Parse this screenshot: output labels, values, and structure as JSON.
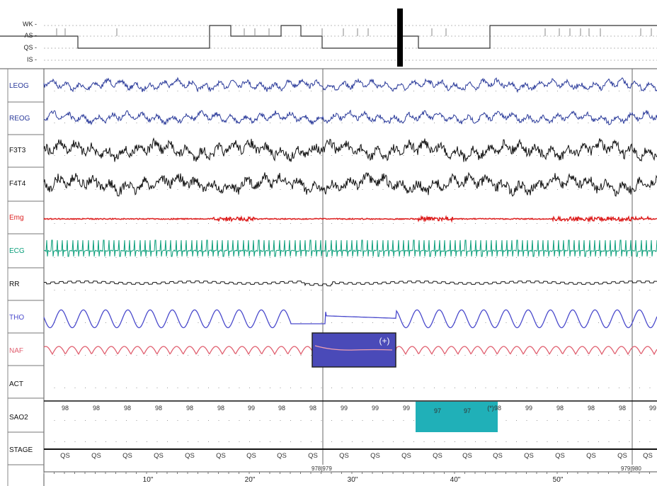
{
  "hypnogram": {
    "stages": [
      "WK",
      "AS",
      "QS",
      "IS"
    ],
    "label_suffix": " -"
  },
  "channels": [
    {
      "label": "LEOG",
      "color": "#2a3a9a"
    },
    {
      "label": "REOG",
      "color": "#2a3a9a"
    },
    {
      "label": "F3T3",
      "color": "#111111"
    },
    {
      "label": "F4T4",
      "color": "#111111"
    },
    {
      "label": "Emg",
      "color": "#dd2020"
    },
    {
      "label": "ECG",
      "color": "#0a9e7a"
    },
    {
      "label": "RR",
      "color": "#111111"
    },
    {
      "label": "THO",
      "color": "#4a4acc"
    },
    {
      "label": "NAF",
      "color": "#e06070"
    },
    {
      "label": "ACT",
      "color": "#111111"
    },
    {
      "label": "SAO2",
      "color": "#111111"
    },
    {
      "label": "STAGE",
      "color": "#111111"
    }
  ],
  "sao2": {
    "values": [
      "98",
      "98",
      "98",
      "98",
      "98",
      "98",
      "99",
      "98",
      "98",
      "99",
      "99",
      "99",
      "97",
      "97",
      "98",
      "99",
      "98",
      "98",
      "98",
      "99"
    ],
    "note_glyph": "(*)"
  },
  "stage_row": {
    "values": [
      "QS",
      "QS",
      "QS",
      "QS",
      "QS",
      "QS",
      "QS",
      "QS",
      "QS",
      "QS",
      "QS",
      "QS",
      "QS",
      "QS",
      "QS",
      "QS",
      "QS",
      "QS",
      "QS",
      "QS"
    ]
  },
  "epochs": {
    "first": "978|979",
    "second": "979|980"
  },
  "time_axis": {
    "labels": [
      "10\"",
      "20\"",
      "30\"",
      "40\"",
      "50\""
    ]
  },
  "apnea_marker": {
    "label": "(+)",
    "color": "#4a4ab8"
  },
  "desat_marker": {
    "color": "#20b0b8"
  }
}
